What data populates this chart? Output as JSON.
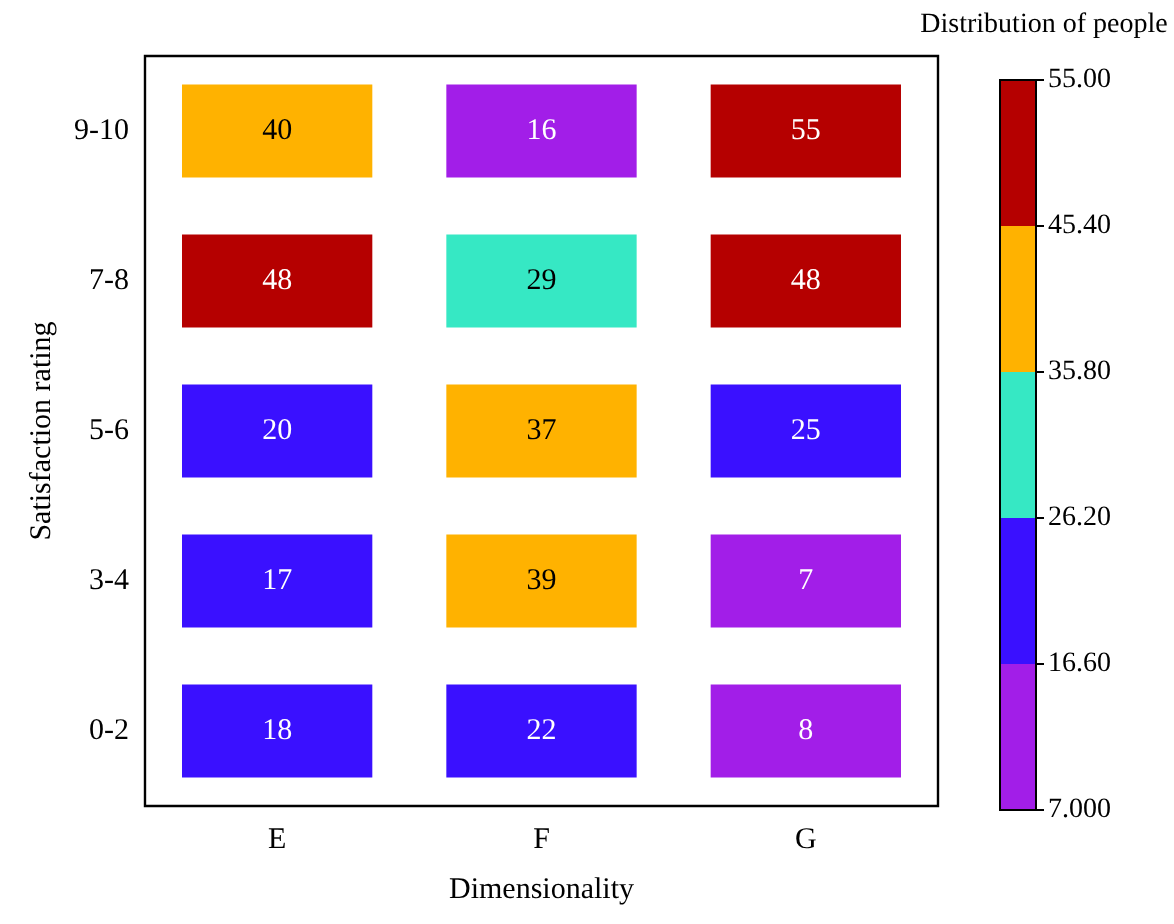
{
  "chart_data": {
    "type": "heatmap",
    "xlabel": "Dimensionality",
    "ylabel": "Satisfaction rating",
    "clabel": "Distribution of people",
    "categories": [
      "E",
      "F",
      "G"
    ],
    "y_categories": [
      "9-10",
      "7-8",
      "5-6",
      "3-4",
      "0-2"
    ],
    "cells": [
      [
        40,
        16,
        55
      ],
      [
        48,
        29,
        48
      ],
      [
        20,
        37,
        25
      ],
      [
        17,
        39,
        7
      ],
      [
        18,
        22,
        8
      ]
    ],
    "clim": [
      7,
      55
    ],
    "cticks": [
      {
        "value": 7,
        "label": "7.000"
      },
      {
        "value": 16.6,
        "label": "16.60"
      },
      {
        "value": 26.2,
        "label": "26.20"
      },
      {
        "value": 35.8,
        "label": "35.80"
      },
      {
        "value": 45.4,
        "label": "45.40"
      },
      {
        "value": 55,
        "label": "55.00"
      }
    ],
    "colors": [
      "#a21ee8",
      "#3a10ff",
      "#36e8c4",
      "#ffb200",
      "#b50000"
    ],
    "data_labels": true
  }
}
